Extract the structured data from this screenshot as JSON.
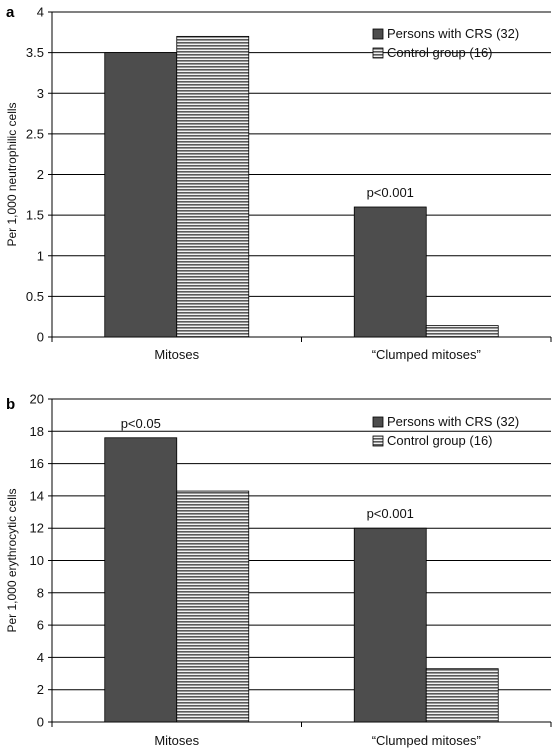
{
  "chart_data": [
    {
      "panel_label": "a",
      "type": "bar",
      "categories": [
        "Mitoses",
        "“Clumped mitoses”"
      ],
      "series": [
        {
          "name": "Persons with CRS (32)",
          "values": [
            3.5,
            1.6
          ],
          "color": "#4d4d4d",
          "pattern": "solid"
        },
        {
          "name": "Control group (16)",
          "values": [
            3.7,
            0.14
          ],
          "color": "#6a6a6a",
          "pattern": "horizontal-stripes"
        }
      ],
      "ylabel": "Per 1,000 neutrophilic cells",
      "ylim": [
        0,
        4
      ],
      "yticks": [
        "0",
        "0.5",
        "1",
        "1.5",
        "2",
        "2.5",
        "3",
        "3.5",
        "4"
      ],
      "grid": true,
      "legend_position": "top-right",
      "annotations": [
        {
          "category_index": 1,
          "text": "p<0.001"
        }
      ]
    },
    {
      "panel_label": "b",
      "type": "bar",
      "categories": [
        "Mitoses",
        "“Clumped mitoses”"
      ],
      "series": [
        {
          "name": "Persons with CRS (32)",
          "values": [
            17.6,
            12.0
          ],
          "color": "#4d4d4d",
          "pattern": "solid"
        },
        {
          "name": "Control group (16)",
          "values": [
            14.3,
            3.3
          ],
          "color": "#6a6a6a",
          "pattern": "horizontal-stripes"
        }
      ],
      "ylabel": "Per 1,000 erythrocytic cells",
      "ylim": [
        0,
        20
      ],
      "yticks": [
        "0",
        "2",
        "4",
        "6",
        "8",
        "10",
        "12",
        "14",
        "16",
        "18",
        "20"
      ],
      "grid": true,
      "legend_position": "top-right",
      "annotations": [
        {
          "category_index": 0,
          "text": "p<0.05"
        },
        {
          "category_index": 1,
          "text": "p<0.001"
        }
      ]
    }
  ]
}
